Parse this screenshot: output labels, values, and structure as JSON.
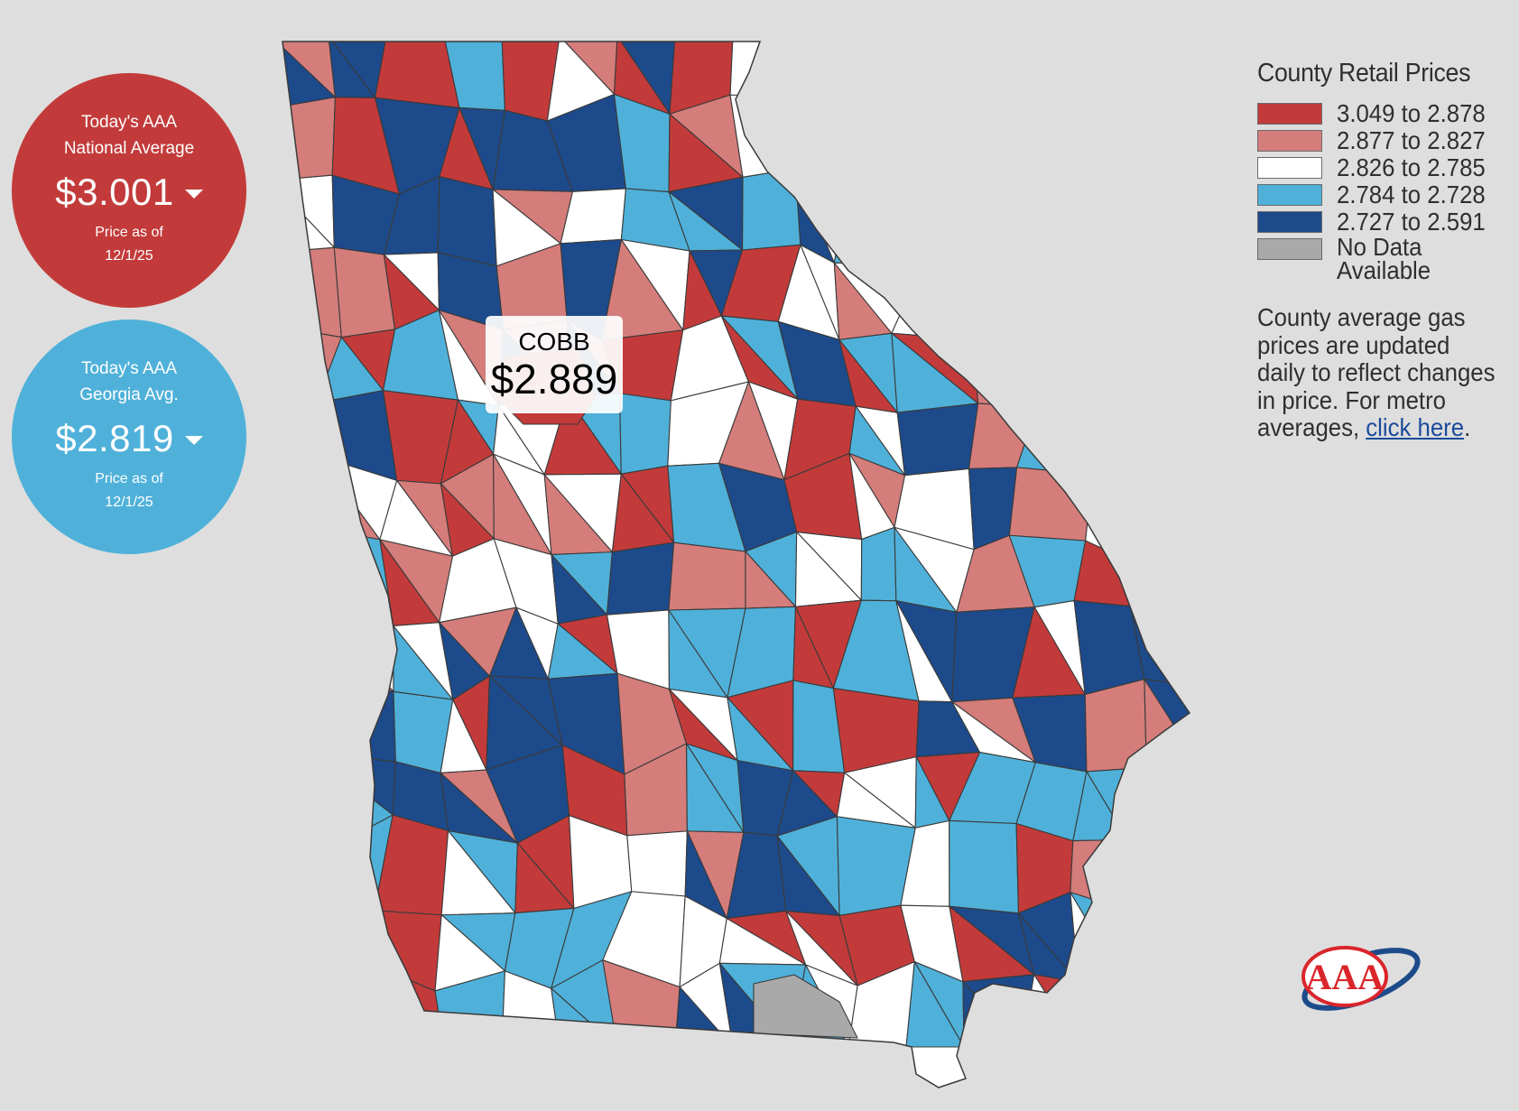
{
  "badges": {
    "national": {
      "line1": "Today's AAA",
      "line2": "National Average",
      "price": "$3.001",
      "trend": "down",
      "asof_line1": "Price as of",
      "asof_line2": "12/1/25",
      "color": "#c23b3a"
    },
    "georgia": {
      "line1": "Today's AAA",
      "line2": "Georgia Avg.",
      "price": "$2.819",
      "trend": "down",
      "asof_line1": "Price as of",
      "asof_line2": "12/1/25",
      "color": "#4fb1d9"
    }
  },
  "tooltip": {
    "county": "COBB",
    "price": "$2.889"
  },
  "legend": {
    "title": "County Retail Prices",
    "items": [
      {
        "label": "3.049 to 2.878",
        "color": "#c23b3a"
      },
      {
        "label": "2.877 to 2.827",
        "color": "#d47d7b"
      },
      {
        "label": "2.826 to 2.785",
        "color": "#ffffff"
      },
      {
        "label": "2.784 to 2.728",
        "color": "#4fb1d9"
      },
      {
        "label": "2.727 to 2.591",
        "color": "#1d4a8a"
      },
      {
        "label": "No Data Available",
        "color": "#a9a9a9"
      }
    ],
    "note_text": "County average gas prices are updated daily to reflect changes in price. For metro averages, ",
    "link_text": "click here",
    "note_end": "."
  },
  "logo": {
    "text": "AAA",
    "red": "#d9262b",
    "blue": "#1d4a8a"
  },
  "map_colors": {
    "tier1": "#c23b3a",
    "tier2": "#d47d7b",
    "tier3": "#ffffff",
    "tier4": "#4fb1d9",
    "tier5": "#1d4a8a",
    "nodata": "#a9a9a9",
    "border": "#3a3a3a"
  }
}
